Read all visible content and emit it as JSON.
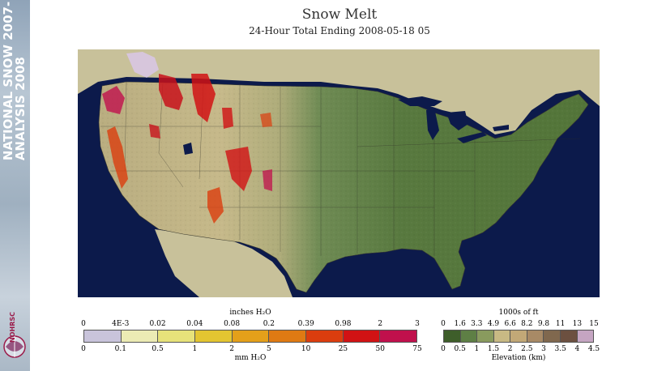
{
  "sidebar": {
    "line1": "NATIONAL SNOW 2007-",
    "line2": "ANALYSIS 2008",
    "logo_text": "NOHRSC"
  },
  "header": {
    "title": "Snow Melt",
    "subtitle": "24-Hour Total Ending 2008-05-18 05"
  },
  "melt_legend": {
    "top_unit": "inches H₂O",
    "bottom_unit": "mm H₂O",
    "top_ticks": [
      "0",
      "4E-3",
      "0.02",
      "0.04",
      "0.08",
      "0.2",
      "0.39",
      "0.98",
      "2",
      "3"
    ],
    "bottom_ticks": [
      "0",
      "0.1",
      "0.5",
      "1",
      "2",
      "5",
      "10",
      "25",
      "50",
      "75"
    ],
    "colors": [
      "#c9c4db",
      "#ecebb4",
      "#e7e27a",
      "#e3c531",
      "#e4a01a",
      "#df7a13",
      "#db3d0e",
      "#d11214",
      "#c0104c"
    ]
  },
  "elev_legend": {
    "top_unit": "1000s of ft",
    "bottom_unit": "Elevation (km)",
    "top_ticks": [
      "0",
      "1.6",
      "3.3",
      "4.9",
      "6.6",
      "8.2",
      "9.8",
      "11",
      "13",
      "15"
    ],
    "bottom_ticks": [
      "0",
      "0.5",
      "1",
      "1.5",
      "2",
      "2.5",
      "3",
      "3.5",
      "4",
      "4.5"
    ],
    "colors": [
      "#3e5e2a",
      "#5e7f45",
      "#899b5e",
      "#c8b984",
      "#c2a877",
      "#a88a66",
      "#80684e",
      "#6c5040",
      "#c5a5c2"
    ]
  }
}
